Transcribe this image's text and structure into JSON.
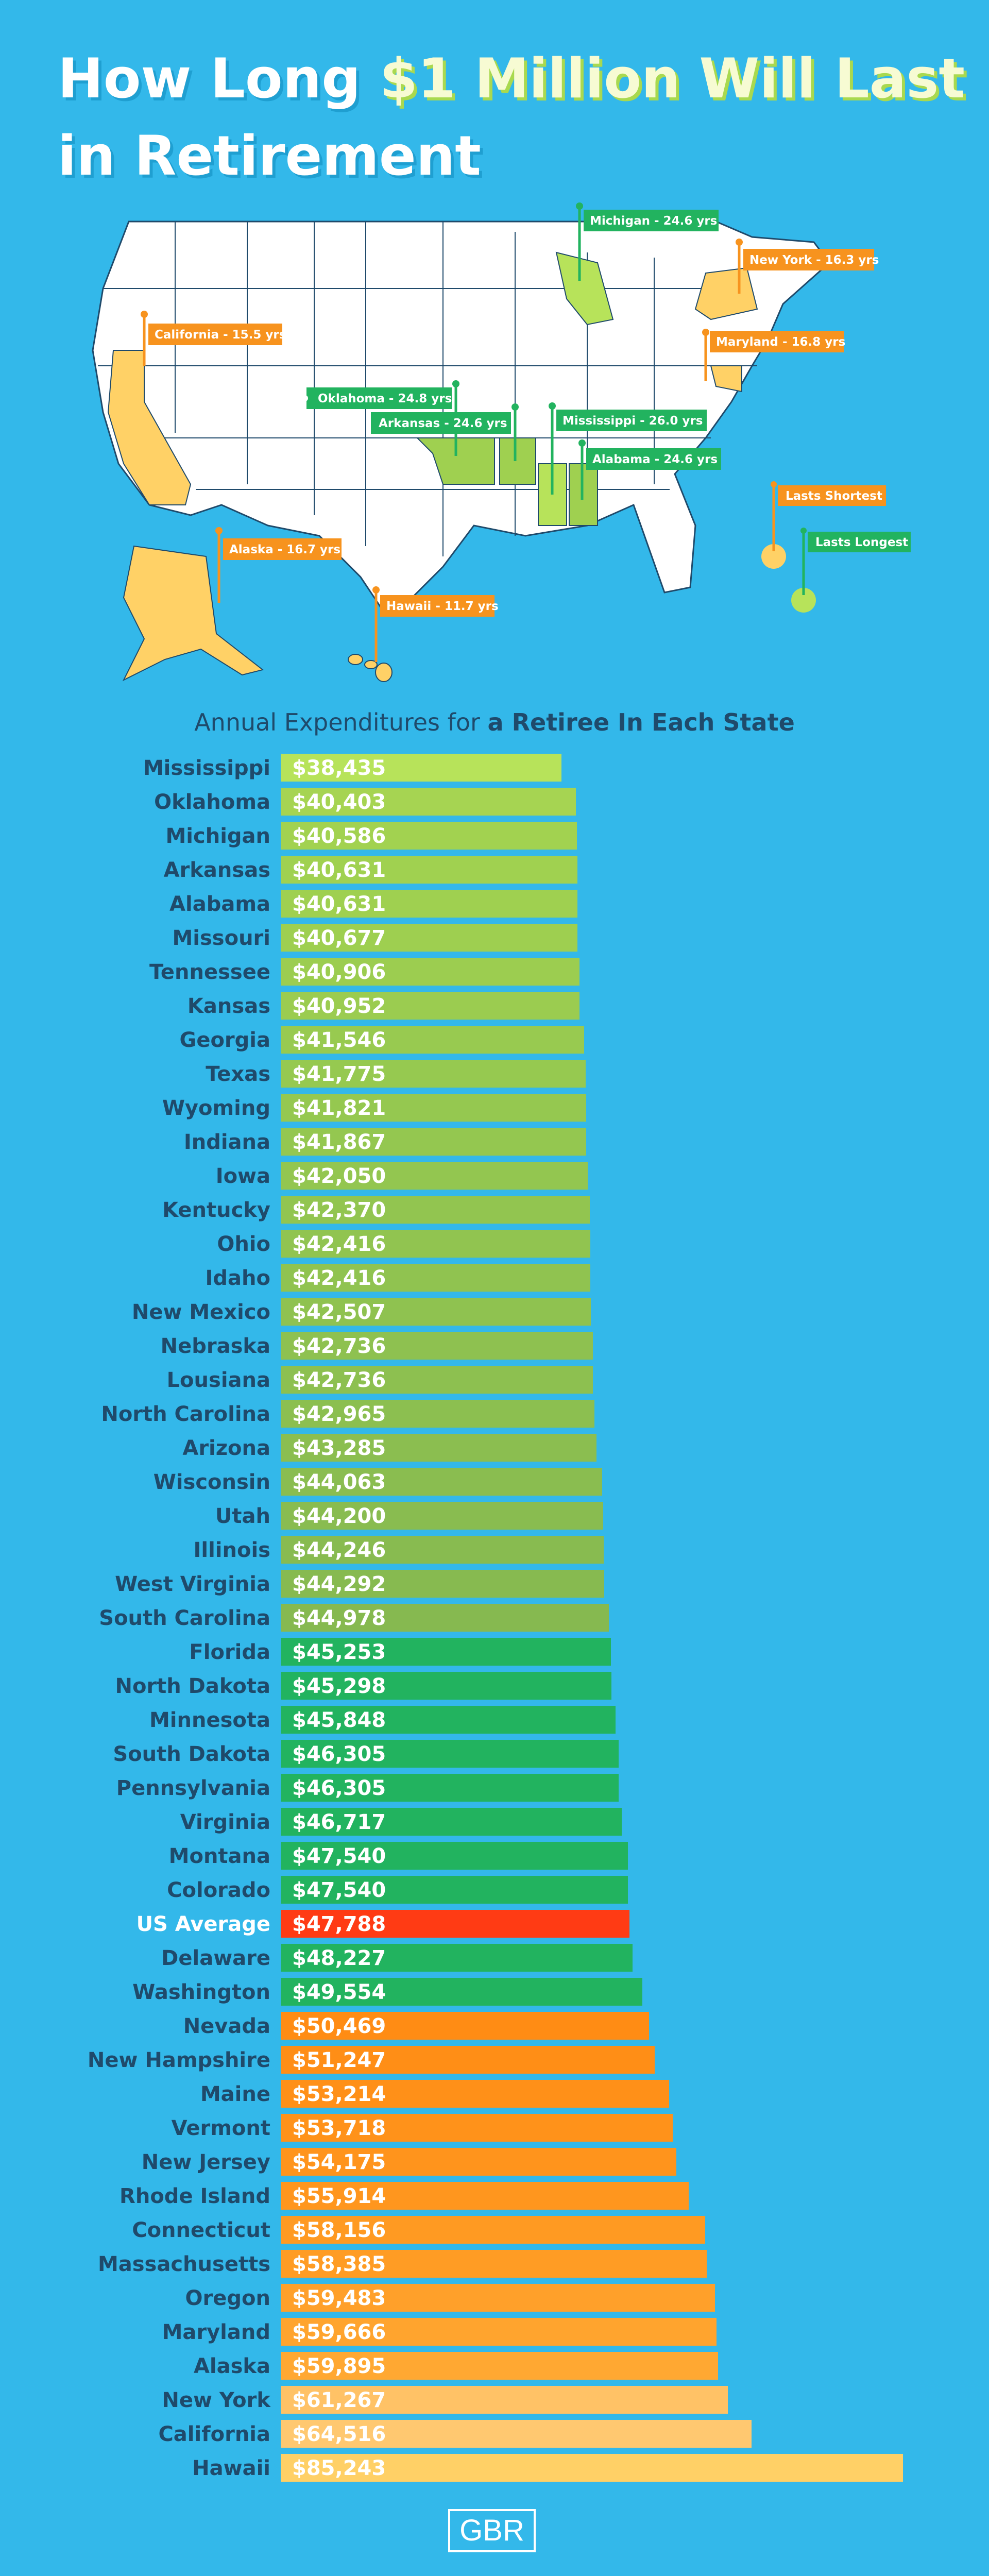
{
  "header": {
    "title_part1": "How Long ",
    "title_accent": "$1 Million Will Last",
    "title_part2": "in Retirement"
  },
  "map": {
    "legend": {
      "shortest_label": "Lasts Shortest",
      "longest_label": "Lasts Longest"
    },
    "flags": [
      {
        "label": "California - 15.5 yrs",
        "kind": "shortest"
      },
      {
        "label": "Alaska - 16.7 yrs",
        "kind": "shortest"
      },
      {
        "label": "Hawaii - 11.7 yrs",
        "kind": "shortest"
      },
      {
        "label": "New York - 16.3 yrs",
        "kind": "shortest"
      },
      {
        "label": "Maryland - 16.8 yrs",
        "kind": "shortest"
      },
      {
        "label": "Michigan - 24.6 yrs",
        "kind": "longest"
      },
      {
        "label": "Oklahoma - 24.8 yrs",
        "kind": "longest"
      },
      {
        "label": "Arkansas - 24.6 yrs",
        "kind": "longest"
      },
      {
        "label": "Mississippi - 26.0 yrs",
        "kind": "longest"
      },
      {
        "label": "Alabama - 24.6 yrs",
        "kind": "longest"
      }
    ]
  },
  "chart_data": {
    "type": "bar",
    "orientation": "horizontal",
    "title_normal": "Annual Expenditures for ",
    "title_bold": "a Retiree In Each State",
    "highlight_category": "US Average",
    "categories": [
      "Mississippi",
      "Oklahoma",
      "Michigan",
      "Arkansas",
      "Alabama",
      "Missouri",
      "Tennessee",
      "Kansas",
      "Georgia",
      "Texas",
      "Wyoming",
      "Indiana",
      "Iowa",
      "Kentucky",
      "Ohio",
      "Idaho",
      "New Mexico",
      "Nebraska",
      "Lousiana",
      "North Carolina",
      "Arizona",
      "Wisconsin",
      "Utah",
      "Illinois",
      "West Virginia",
      "South Carolina",
      "Florida",
      "North Dakota",
      "Minnesota",
      "South Dakota",
      "Pennsylvania",
      "Virginia",
      "Montana",
      "Colorado",
      "US Average",
      "Delaware",
      "Washington",
      "Nevada",
      "New Hampshire",
      "Maine",
      "Vermont",
      "New Jersey",
      "Rhode Island",
      "Connecticut",
      "Massachusetts",
      "Oregon",
      "Maryland",
      "Alaska",
      "New York",
      "California",
      "Hawaii"
    ],
    "values": [
      38435,
      40403,
      40586,
      40631,
      40631,
      40677,
      40906,
      40952,
      41546,
      41775,
      41821,
      41867,
      42050,
      42370,
      42416,
      42416,
      42507,
      42736,
      42736,
      42965,
      43285,
      44063,
      44200,
      44246,
      44292,
      44978,
      45253,
      45298,
      45848,
      46305,
      46305,
      46717,
      47540,
      47540,
      47788,
      48227,
      49554,
      50469,
      51247,
      53214,
      53718,
      54175,
      55914,
      58156,
      58385,
      59483,
      59666,
      59895,
      61267,
      64516,
      85243
    ],
    "value_labels": [
      "$38,435",
      "$40,403",
      "$40,586",
      "$40,631",
      "$40,631",
      "$40,677",
      "$40,906",
      "$40,952",
      "$41,546",
      "$41,775",
      "$41,821",
      "$41,867",
      "$42,050",
      "$42,370",
      "$42,416",
      "$42,416",
      "$42,507",
      "$42,736",
      "$42,736",
      "$42,965",
      "$43,285",
      "$44,063",
      "$44,200",
      "$44,246",
      "$44,292",
      "$44,978",
      "$45,253",
      "$45,298",
      "$45,848",
      "$46,305",
      "$46,305",
      "$46,717",
      "$47,540",
      "$47,540",
      "$47,788",
      "$48,227",
      "$49,554",
      "$50,469",
      "$51,247",
      "$53,214",
      "$53,718",
      "$54,175",
      "$55,914",
      "$58,156",
      "$58,385",
      "$59,483",
      "$59,666",
      "$59,895",
      "$61,267",
      "$64,516",
      "$85,243"
    ],
    "colors": [
      "#b7e35a",
      "#a6d452",
      "#a2d250",
      "#a0d150",
      "#9fd050",
      "#9ecf50",
      "#9ccd50",
      "#9bcc50",
      "#98ca50",
      "#96c950",
      "#95c850",
      "#94c750",
      "#93c650",
      "#92c550",
      "#91c450",
      "#90c350",
      "#8fc250",
      "#8ec150",
      "#8dc050",
      "#8cbf50",
      "#8bbe50",
      "#8abd50",
      "#89bc50",
      "#88bb50",
      "#87ba50",
      "#86b950",
      "#22b35f",
      "#22b35f",
      "#22b35f",
      "#22b35f",
      "#22b35f",
      "#22b35f",
      "#22b35f",
      "#22b35f",
      "#ff3b14",
      "#22b35f",
      "#22b35f",
      "#ff8c14",
      "#ff8e16",
      "#ff9018",
      "#ff921a",
      "#ff941c",
      "#ff961e",
      "#ff9a22",
      "#ff9c24",
      "#ffa02a",
      "#ffa42e",
      "#ffa832",
      "#ffc266",
      "#ffc870",
      "#ffd066"
    ],
    "xlim": [
      0,
      85243
    ],
    "grid": false,
    "legend": "none"
  },
  "footer": {
    "logo_text": "GBR"
  }
}
